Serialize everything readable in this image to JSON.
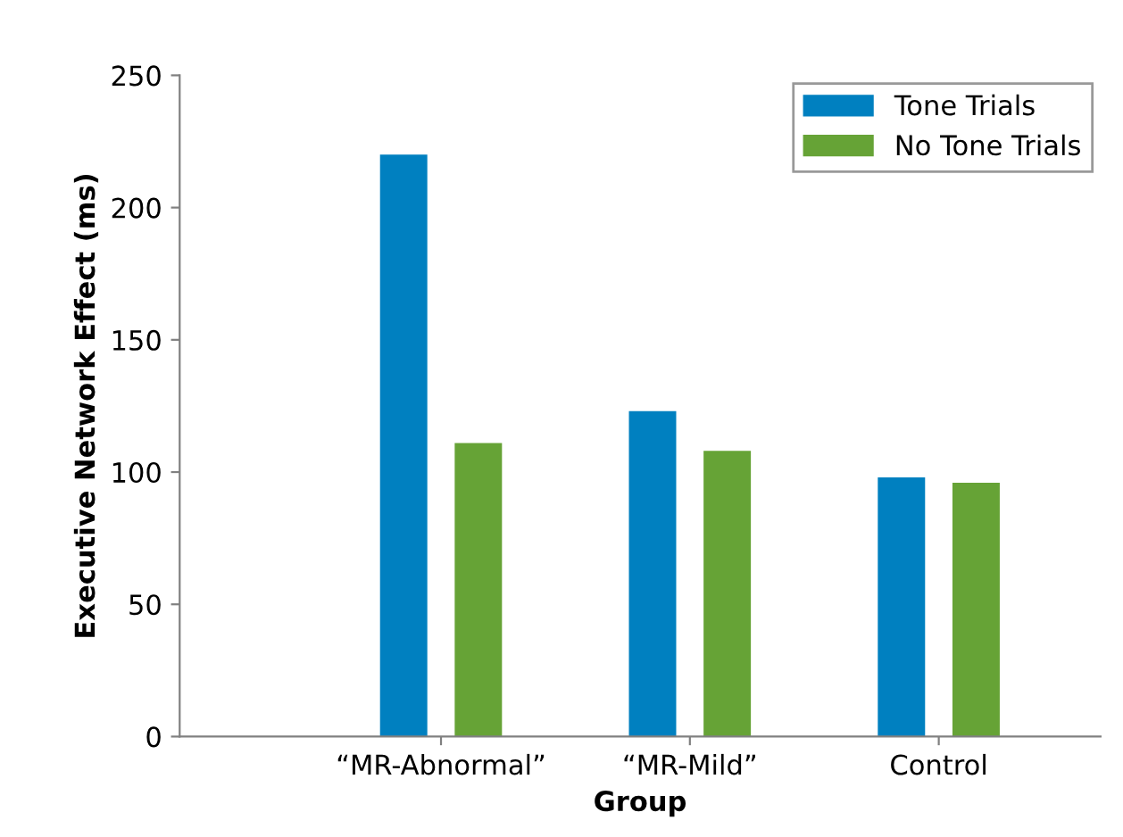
{
  "chart_data": {
    "type": "bar",
    "xlabel": "Group",
    "ylabel": "Executive Network Effect (ms)",
    "categories": [
      "“MR-Abnormal”",
      "“MR-Mild”",
      "Control"
    ],
    "series": [
      {
        "name": "Tone Trials",
        "color": "#0080c0",
        "values": [
          220,
          123,
          98
        ]
      },
      {
        "name": "No Tone Trials",
        "color": "#66a336",
        "values": [
          111,
          108,
          96
        ]
      }
    ],
    "ylim": [
      0,
      250
    ],
    "yticks": [
      0,
      50,
      100,
      150,
      200,
      250
    ],
    "grid": false,
    "legend": "top right"
  }
}
